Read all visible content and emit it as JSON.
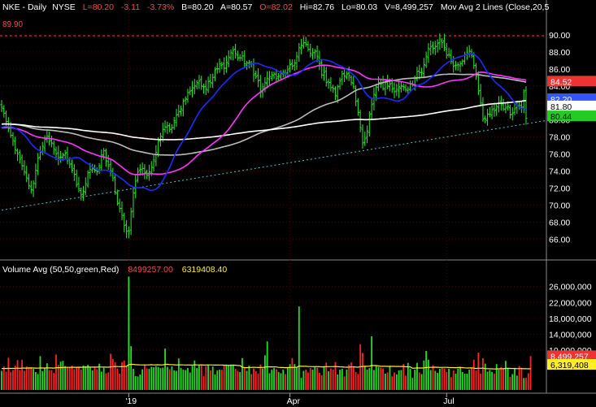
{
  "header": {
    "symbol": "NKE",
    "interval": "Daily",
    "exchange": "NYSE",
    "last": "L=80.20",
    "change": "-3.11",
    "change_pct": "-3.73%",
    "bid": "B=80.20",
    "ask": "A=80.57",
    "open": "O=82.02",
    "high": "Hi=82.76",
    "low": "Lo=80.03",
    "volume": "V=8,499,257",
    "study": "Mov Avg 2 Lines (Close,20,5"
  },
  "colors": {
    "background": "#000000",
    "up": "#22dd22",
    "down": "#ff2222",
    "ma20": "#1a2cff",
    "ma50": "#ff33ff",
    "ma100": "#bbbbbb",
    "ma200": "#ffffff",
    "grid": "#ff3333",
    "axis_text": "#ffffff"
  },
  "price_panel": {
    "resistance_label": "89.90",
    "badges": [
      {
        "text": "84.52",
        "bg": "#ee3333",
        "fg": "#ffffff"
      },
      {
        "text": "82.20",
        "bg": "#3355ff",
        "fg": "#ffffff"
      },
      {
        "text": "81.80",
        "bg": "#ffffff",
        "fg": "#000000"
      },
      {
        "text": "80.44",
        "bg": "#22cc22",
        "fg": "#000000"
      }
    ]
  },
  "volume_panel": {
    "title": "Volume Avg (50,50,green,Red)",
    "value_red": "8499257.00",
    "value_yellow": "6319408.40",
    "badges": [
      {
        "text": "8,499,257",
        "bg": "#ee3333",
        "fg": "#ffffff"
      },
      {
        "text": "6,319,408",
        "bg": "#ffee22",
        "fg": "#000000"
      }
    ]
  },
  "chart_data": {
    "type": "ohlc",
    "price_axis": {
      "ylim": [
        64.5,
        92
      ],
      "ticks": [
        "66.00",
        "68.00",
        "70.00",
        "72.00",
        "74.00",
        "76.00",
        "78.00",
        "80.00",
        "82.00",
        "84.00",
        "86.00",
        "88.00",
        "90.00"
      ]
    },
    "volume_axis": {
      "ylim": [
        0,
        29000000
      ],
      "ticks": [
        "10,000,000",
        "14,000,000",
        "18,000,000",
        "22,000,000",
        "26,000,000"
      ]
    },
    "x_labels": [
      "'19",
      "Apr",
      "Jul"
    ],
    "resistance": 89.9,
    "support_trendline": [
      [
        0,
        69.4
      ],
      [
        230,
        79.5
      ]
    ],
    "closes": [
      81.5,
      80.8,
      79.8,
      79.0,
      78.2,
      77.6,
      76.5,
      76.0,
      75.4,
      74.6,
      73.9,
      73.2,
      72.3,
      71.8,
      72.6,
      74.1,
      75.5,
      76.3,
      76.9,
      77.7,
      78.1,
      77.5,
      77.3,
      76.6,
      76.0,
      75.5,
      75.6,
      75.9,
      76.1,
      75.2,
      74.8,
      74.1,
      73.6,
      72.4,
      71.9,
      71.2,
      71.6,
      72.5,
      73.8,
      74.2,
      74.3,
      74.1,
      73.9,
      74.6,
      75.9,
      76.4,
      75.2,
      74.6,
      74.0,
      73.1,
      71.5,
      70.2,
      69.6,
      68.8,
      67.6,
      66.9,
      66.9,
      69.2,
      71.4,
      72.8,
      73.9,
      74.2,
      74.3,
      73.8,
      73.5,
      73.9,
      74.5,
      75.3,
      76.2,
      77.5,
      78.1,
      78.9,
      79.2,
      79.3,
      78.9,
      79.1,
      79.9,
      80.6,
      81.0,
      81.3,
      82.2,
      82.5,
      83.2,
      83.4,
      83.8,
      84.0,
      84.4,
      84.6,
      84.0,
      83.9,
      83.6,
      84.5,
      84.4,
      85.0,
      85.9,
      86.0,
      86.6,
      86.5,
      86.1,
      86.8,
      87.4,
      87.9,
      88.2,
      87.8,
      87.3,
      87.3,
      87.5,
      86.6,
      86.7,
      86.8,
      86.6,
      85.3,
      85.1,
      84.6,
      83.4,
      83.9,
      84.4,
      84.9,
      85.1,
      85.3,
      85.4,
      84.9,
      85.2,
      85.5,
      85.6,
      85.4,
      85.9,
      86.5,
      86.3,
      86.7,
      87.5,
      88.5,
      88.8,
      89.1,
      88.9,
      88.3,
      87.8,
      87.9,
      88.1,
      87.5,
      86.6,
      85.3,
      85.6,
      84.4,
      84.4,
      83.8,
      83.7,
      82.9,
      83.9,
      84.6,
      85.4,
      85.2,
      85.4,
      85.2,
      84.4,
      83.9,
      82.2,
      80.9,
      79.1,
      77.3,
      77.8,
      78.7,
      80.7,
      81.8,
      83.0,
      83.9,
      84.4,
      84.2,
      83.7,
      84.4,
      84.0,
      84.2,
      83.6,
      83.3,
      83.6,
      83.9,
      84.0,
      83.9,
      83.6,
      83.6,
      84.2,
      84.2,
      84.9,
      85.7,
      85.6,
      85.6,
      86.5,
      87.5,
      88.4,
      88.6,
      88.4,
      88.6,
      89.0,
      89.5,
      89.1,
      88.5,
      87.6,
      87.7,
      86.9,
      86.3,
      86.4,
      86.5,
      86.6,
      86.9,
      87.7,
      87.8,
      88.1,
      87.6,
      86.4,
      85.1,
      83.4,
      82.0,
      80.1,
      80.1,
      80.7,
      80.7,
      81.2,
      81.1,
      81.6,
      82.0,
      81.9,
      81.3,
      81.4,
      81.6,
      80.6,
      80.8,
      81.3,
      81.7,
      81.6,
      81.5,
      83.3,
      80.2
    ],
    "volume_millions": [
      4.8,
      5.9,
      4.6,
      8.1,
      4.5,
      5.0,
      6.1,
      7.5,
      5.0,
      7.6,
      4.8,
      5.9,
      5.7,
      5.7,
      5.3,
      4.5,
      4.0,
      8.5,
      4.7,
      5.5,
      6.7,
      5.0,
      5.0,
      4.3,
      8.9,
      6.3,
      7.1,
      7.3,
      6.0,
      5.6,
      5.7,
      6.1,
      5.2,
      5.8,
      5.8,
      5.1,
      6.1,
      6.0,
      6.3,
      5.8,
      4.9,
      5.7,
      5.2,
      6.6,
      4.6,
      5.6,
      4.2,
      4.4,
      9.1,
      7.8,
      7.0,
      5.4,
      4.1,
      7.0,
      7.4,
      5.9,
      28.5,
      11.0,
      5.3,
      3.5,
      3.4,
      3.9,
      5.2,
      6.4,
      5.4,
      5.3,
      5.8,
      5.7,
      6.0,
      5.8,
      5.5,
      5.6,
      10.4,
      5.8,
      5.2,
      5.9,
      4.9,
      4.8,
      7.9,
      5.5,
      5.1,
      5.0,
      5.5,
      4.4,
      6.1,
      7.4,
      5.5,
      6.3,
      6.4,
      3.5,
      6.0,
      6.4,
      4.9,
      5.9,
      3.9,
      4.9,
      5.1,
      5.1,
      6.3,
      6.4,
      6.3,
      6.4,
      6.2,
      5.3,
      4.8,
      4.5,
      8.0,
      5.6,
      4.8,
      6.1,
      4.0,
      5.4,
      4.7,
      4.1,
      6.4,
      5.4,
      8.7,
      12.2,
      4.2,
      5.1,
      5.5,
      5.2,
      4.5,
      4.2,
      5.1,
      4.0,
      5.6,
      6.5,
      8.0,
      6.5,
      5.7,
      21.0,
      3.0,
      4.8,
      5.1,
      4.4,
      5.5,
      5.1,
      5.7,
      5.6,
      4.3,
      3.7,
      6.0,
      6.9,
      4.7,
      5.4,
      5.1,
      7.0,
      3.9,
      5.1,
      5.3,
      3.4,
      5.1,
      6.4,
      6.9,
      5.7,
      4.5,
      4.0,
      11.5,
      9.3,
      6.0,
      5.1,
      5.5,
      13.5,
      5.0,
      6.0,
      5.8,
      5.6,
      5.4,
      4.1,
      4.4,
      5.9,
      3.4,
      4.4,
      3.9,
      4.9,
      5.0,
      6.5,
      3.6,
      6.8,
      5.3,
      3.0,
      5.1,
      6.8,
      4.4,
      4.0,
      7.4,
      9.8,
      7.6,
      5.0,
      6.2,
      4.8,
      4.3,
      5.3,
      5.6,
      5.4,
      4.5,
      5.3,
      3.2,
      4.9,
      4.1,
      5.4,
      5.8,
      4.5,
      4.1,
      4.1,
      5.1,
      5.5,
      7.6,
      4.9,
      9.4,
      4.1,
      8.0,
      6.6,
      4.6,
      5.0,
      4.5,
      4.1,
      6.5,
      5.1,
      5.7,
      5.4,
      7.3,
      5.3,
      3.3,
      4.0,
      5.3,
      3.6,
      6.0,
      5.6,
      3.0,
      3.1,
      4.2,
      8.5
    ]
  }
}
